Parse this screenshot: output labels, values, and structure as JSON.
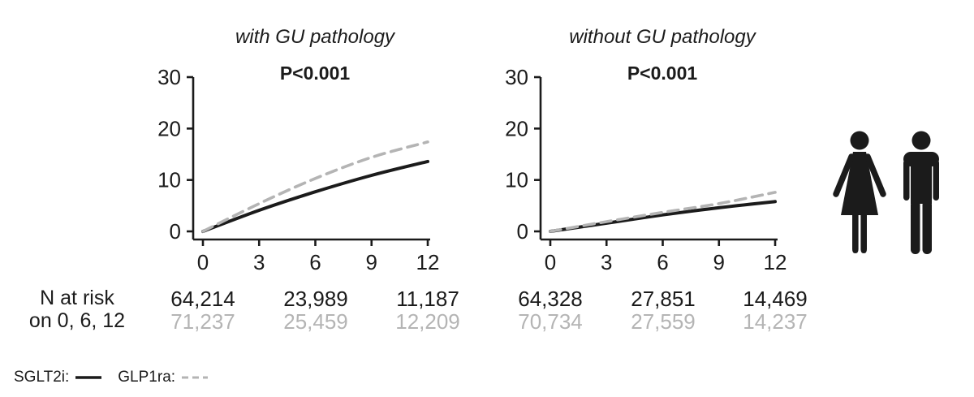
{
  "figure": {
    "n_at_risk_label": {
      "line1": "N at risk",
      "line2": "on 0, 6, 12"
    },
    "legend": {
      "items": [
        {
          "label": "SGLT2i:",
          "line_style": "solid",
          "color": "#1b1b1b"
        },
        {
          "label": "GLP1ra:",
          "line_style": "dashed",
          "color": "#b4b4b4"
        }
      ]
    },
    "icons": [
      {
        "name": "female-pictogram",
        "color": "#1b1b1b"
      },
      {
        "name": "male-pictogram",
        "color": "#1b1b1b"
      }
    ]
  },
  "chart_data": [
    {
      "type": "line",
      "title": "with GU pathology",
      "annotation": "P<0.001",
      "xlim": [
        0,
        12
      ],
      "ylim": [
        0,
        30
      ],
      "x": [
        0,
        3,
        6,
        9,
        12
      ],
      "xticks": [
        "0",
        "3",
        "6",
        "9",
        "12"
      ],
      "yticks": [
        "0",
        "10",
        "20",
        "30"
      ],
      "grid": false,
      "series": [
        {
          "name": "SGLT2i",
          "style": "solid",
          "color": "#1b1b1b",
          "values": [
            0,
            4.1,
            7.7,
            10.9,
            13.6
          ]
        },
        {
          "name": "GLP1ra",
          "style": "dashed",
          "color": "#b4b4b4",
          "values": [
            0,
            5.4,
            10.3,
            14.4,
            17.4
          ]
        }
      ],
      "n_at_risk": {
        "times": [
          0,
          6,
          12
        ],
        "sglt2i": [
          "64,214",
          "23,989",
          "11,187"
        ],
        "glp1ra": [
          "71,237",
          "25,459",
          "12,209"
        ]
      }
    },
    {
      "type": "line",
      "title": "without GU pathology",
      "annotation": "P<0.001",
      "xlim": [
        0,
        12
      ],
      "ylim": [
        0,
        30
      ],
      "x": [
        0,
        3,
        6,
        9,
        12
      ],
      "xticks": [
        "0",
        "3",
        "6",
        "9",
        "12"
      ],
      "yticks": [
        "0",
        "10",
        "20",
        "30"
      ],
      "grid": false,
      "series": [
        {
          "name": "SGLT2i",
          "style": "solid",
          "color": "#1b1b1b",
          "values": [
            0,
            1.6,
            3.2,
            4.6,
            5.8
          ]
        },
        {
          "name": "GLP1ra",
          "style": "dashed",
          "color": "#b4b4b4",
          "values": [
            0,
            1.9,
            3.7,
            5.4,
            7.6
          ]
        }
      ],
      "n_at_risk": {
        "times": [
          0,
          6,
          12
        ],
        "sglt2i": [
          "64,328",
          "27,851",
          "14,469"
        ],
        "glp1ra": [
          "70,734",
          "27,559",
          "14,237"
        ]
      }
    }
  ]
}
